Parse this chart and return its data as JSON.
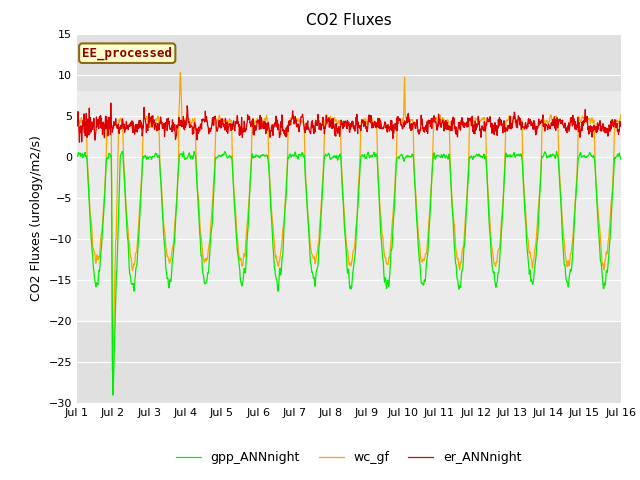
{
  "title": "CO2 Fluxes",
  "ylabel": "CO2 Fluxes (urology/m2/s)",
  "ylim": [
    -30,
    15
  ],
  "xlim": [
    0,
    15
  ],
  "yticks": [
    -30,
    -25,
    -20,
    -15,
    -10,
    -5,
    0,
    5,
    10,
    15
  ],
  "xtick_labels": [
    "Jul 1",
    "Jul 2",
    "Jul 3",
    "Jul 4",
    "Jul 5",
    "Jul 6",
    "Jul 7",
    "Jul 8",
    "Jul 9",
    "Jul 10",
    "Jul 11",
    "Jul 12",
    "Jul 13",
    "Jul 14",
    "Jul 15",
    "Jul 16"
  ],
  "xtick_positions": [
    0,
    1,
    2,
    3,
    4,
    5,
    6,
    7,
    8,
    9,
    10,
    11,
    12,
    13,
    14,
    15
  ],
  "gpp_color": "#00ee00",
  "er_color": "#dd0000",
  "wc_color": "#ffa500",
  "gpp_label": "gpp_ANNnight",
  "er_label": "er_ANNnight",
  "wc_label": "wc_gf",
  "ee_label": "EE_processed",
  "bg_color": "#ffffff",
  "plot_bg_color": "#e0e0e0",
  "shaded_ymin": -20,
  "shaded_ymax": 8,
  "title_fontsize": 11,
  "axis_label_fontsize": 9,
  "tick_fontsize": 8,
  "legend_fontsize": 9,
  "line_width": 0.9
}
